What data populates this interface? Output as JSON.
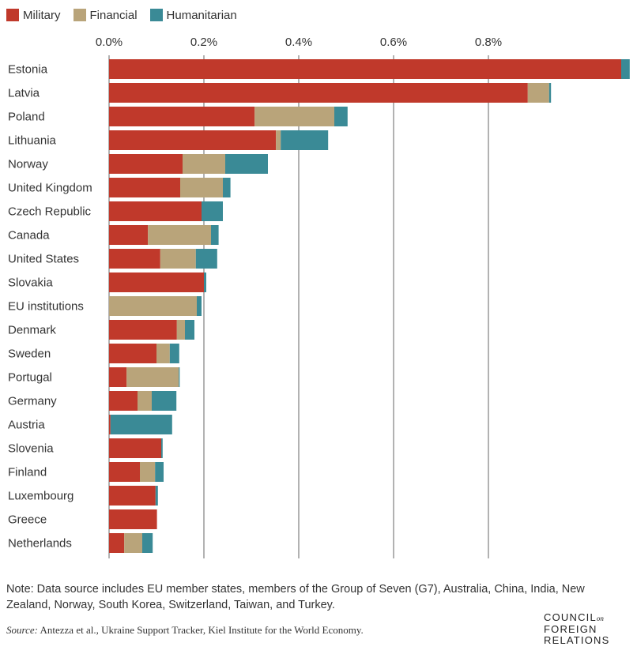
{
  "colors": {
    "military": "#c0392b",
    "financial": "#b9a47a",
    "humanitarian": "#3a8a96",
    "grid": "#999999"
  },
  "chart_data": {
    "type": "bar",
    "orientation": "horizontal",
    "stacked": true,
    "unit": "% of GDP",
    "categories": [
      "Estonia",
      "Latvia",
      "Poland",
      "Lithuania",
      "Norway",
      "United Kingdom",
      "Czech Republic",
      "Canada",
      "United States",
      "Slovakia",
      "EU institutions",
      "Denmark",
      "Sweden",
      "Portugal",
      "Germany",
      "Austria",
      "Slovenia",
      "Finland",
      "Luxembourg",
      "Greece",
      "Netherlands"
    ],
    "series": [
      {
        "name": "Military",
        "values": [
          1.08,
          0.883,
          0.307,
          0.352,
          0.155,
          0.15,
          0.195,
          0.082,
          0.108,
          0.2,
          0.0,
          0.143,
          0.1,
          0.037,
          0.06,
          0.003,
          0.11,
          0.065,
          0.098,
          0.101,
          0.032
        ]
      },
      {
        "name": "Financial",
        "values": [
          0.0,
          0.045,
          0.168,
          0.01,
          0.09,
          0.09,
          0.0,
          0.133,
          0.075,
          0.0,
          0.185,
          0.017,
          0.028,
          0.11,
          0.03,
          0.0,
          0.0,
          0.032,
          0.0,
          0.0,
          0.038
        ]
      },
      {
        "name": "Humanitarian",
        "values": [
          0.018,
          0.004,
          0.028,
          0.1,
          0.09,
          0.016,
          0.045,
          0.016,
          0.045,
          0.005,
          0.01,
          0.02,
          0.02,
          0.002,
          0.052,
          0.13,
          0.003,
          0.018,
          0.005,
          0.0,
          0.022
        ]
      }
    ],
    "xticks": [
      "0.0%",
      "0.2%",
      "0.4%",
      "0.6%",
      "0.8%"
    ],
    "xtick_values": [
      0,
      0.2,
      0.4,
      0.6,
      0.8
    ],
    "xlim": [
      0,
      1.1
    ],
    "grid": true,
    "legend": "top-left"
  },
  "note": "Note: Data source includes EU member states, members of the Group of Seven (G7), Australia, China, India, New Zealand, Norway, South Korea, Switzerland, Taiwan, and Turkey.",
  "source": {
    "label": "Source:",
    "text": "Antezza et al., Ukraine Support Tracker, Kiel Institute for the World Economy."
  },
  "logo": {
    "line1": "COUNCIL",
    "small": "on",
    "line2": "FOREIGN",
    "line3": "RELATIONS"
  }
}
